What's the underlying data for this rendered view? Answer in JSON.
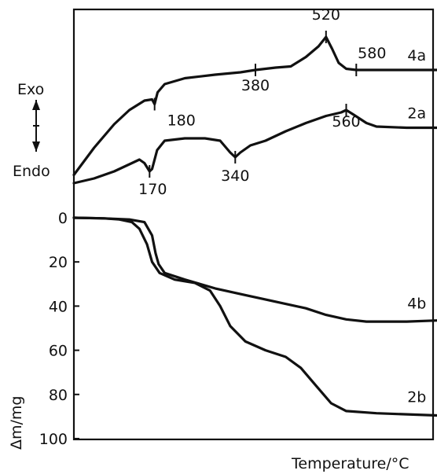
{
  "chart_data": [
    {
      "type": "line",
      "panel": "DTA",
      "xlabel": "Temperature/°C",
      "ylabel_top": "Exo",
      "ylabel_bottom": "Endo",
      "direction_arrow": "up-down",
      "series": [
        {
          "name": "4a",
          "points": [
            [
              20,
              0.05
            ],
            [
              60,
              0.28
            ],
            [
              100,
              0.48
            ],
            [
              130,
              0.6
            ],
            [
              160,
              0.68
            ],
            [
              175,
              0.69
            ],
            [
              180,
              0.65
            ],
            [
              186,
              0.75
            ],
            [
              200,
              0.82
            ],
            [
              240,
              0.87
            ],
            [
              300,
              0.9
            ],
            [
              350,
              0.92
            ],
            [
              380,
              0.94
            ],
            [
              420,
              0.96
            ],
            [
              450,
              0.97
            ],
            [
              480,
              1.05
            ],
            [
              505,
              1.14
            ],
            [
              520,
              1.22
            ],
            [
              532,
              1.12
            ],
            [
              545,
              1.0
            ],
            [
              560,
              0.95
            ],
            [
              580,
              0.94
            ],
            [
              620,
              0.94
            ],
            [
              680,
              0.94
            ],
            [
              740,
              0.94
            ]
          ]
        },
        {
          "name": "2a",
          "points": [
            [
              20,
              -0.02
            ],
            [
              60,
              0.02
            ],
            [
              100,
              0.08
            ],
            [
              130,
              0.14
            ],
            [
              150,
              0.18
            ],
            [
              160,
              0.15
            ],
            [
              170,
              0.08
            ],
            [
              175,
              0.1
            ],
            [
              185,
              0.26
            ],
            [
              200,
              0.34
            ],
            [
              240,
              0.36
            ],
            [
              280,
              0.36
            ],
            [
              310,
              0.34
            ],
            [
              330,
              0.24
            ],
            [
              340,
              0.2
            ],
            [
              350,
              0.24
            ],
            [
              370,
              0.3
            ],
            [
              400,
              0.34
            ],
            [
              440,
              0.42
            ],
            [
              480,
              0.49
            ],
            [
              520,
              0.55
            ],
            [
              550,
              0.58
            ],
            [
              560,
              0.6
            ],
            [
              575,
              0.56
            ],
            [
              600,
              0.49
            ],
            [
              620,
              0.46
            ],
            [
              680,
              0.45
            ],
            [
              740,
              0.45
            ]
          ]
        }
      ],
      "annotations": [
        {
          "text": "520",
          "x": 520
        },
        {
          "text": "580",
          "x": 580
        },
        {
          "text": "380",
          "x": 380
        },
        {
          "text": "180",
          "x": 180
        },
        {
          "text": "560",
          "x": 560
        },
        {
          "text": "340",
          "x": 340
        },
        {
          "text": "170",
          "x": 170
        }
      ]
    },
    {
      "type": "line",
      "panel": "TG",
      "xlabel": "Temperature/°C",
      "ylabel": "Δm/mg",
      "ylim": [
        0,
        100
      ],
      "y_inverted": true,
      "yticks": [
        "0",
        "20",
        "40",
        "60",
        "80",
        "100"
      ],
      "series": [
        {
          "name": "4b",
          "points": [
            [
              20,
              0
            ],
            [
              80,
              0.3
            ],
            [
              130,
              0.8
            ],
            [
              160,
              2
            ],
            [
              175,
              8
            ],
            [
              182,
              16
            ],
            [
              188,
              21
            ],
            [
              200,
              25
            ],
            [
              240,
              28
            ],
            [
              300,
              32
            ],
            [
              360,
              35
            ],
            [
              420,
              38
            ],
            [
              480,
              41
            ],
            [
              520,
              44
            ],
            [
              560,
              46
            ],
            [
              600,
              47
            ],
            [
              680,
              47
            ],
            [
              740,
              46.5
            ]
          ]
        },
        {
          "name": "2b",
          "points": [
            [
              20,
              0
            ],
            [
              80,
              0.3
            ],
            [
              110,
              0.8
            ],
            [
              135,
              2
            ],
            [
              150,
              5
            ],
            [
              165,
              12
            ],
            [
              175,
              20
            ],
            [
              190,
              25
            ],
            [
              220,
              28
            ],
            [
              260,
              29.5
            ],
            [
              290,
              33
            ],
            [
              310,
              40
            ],
            [
              330,
              49
            ],
            [
              360,
              56
            ],
            [
              400,
              60
            ],
            [
              440,
              63
            ],
            [
              470,
              68
            ],
            [
              500,
              76
            ],
            [
              530,
              84
            ],
            [
              560,
              87.5
            ],
            [
              620,
              88.5
            ],
            [
              740,
              89.5
            ]
          ]
        }
      ]
    }
  ]
}
